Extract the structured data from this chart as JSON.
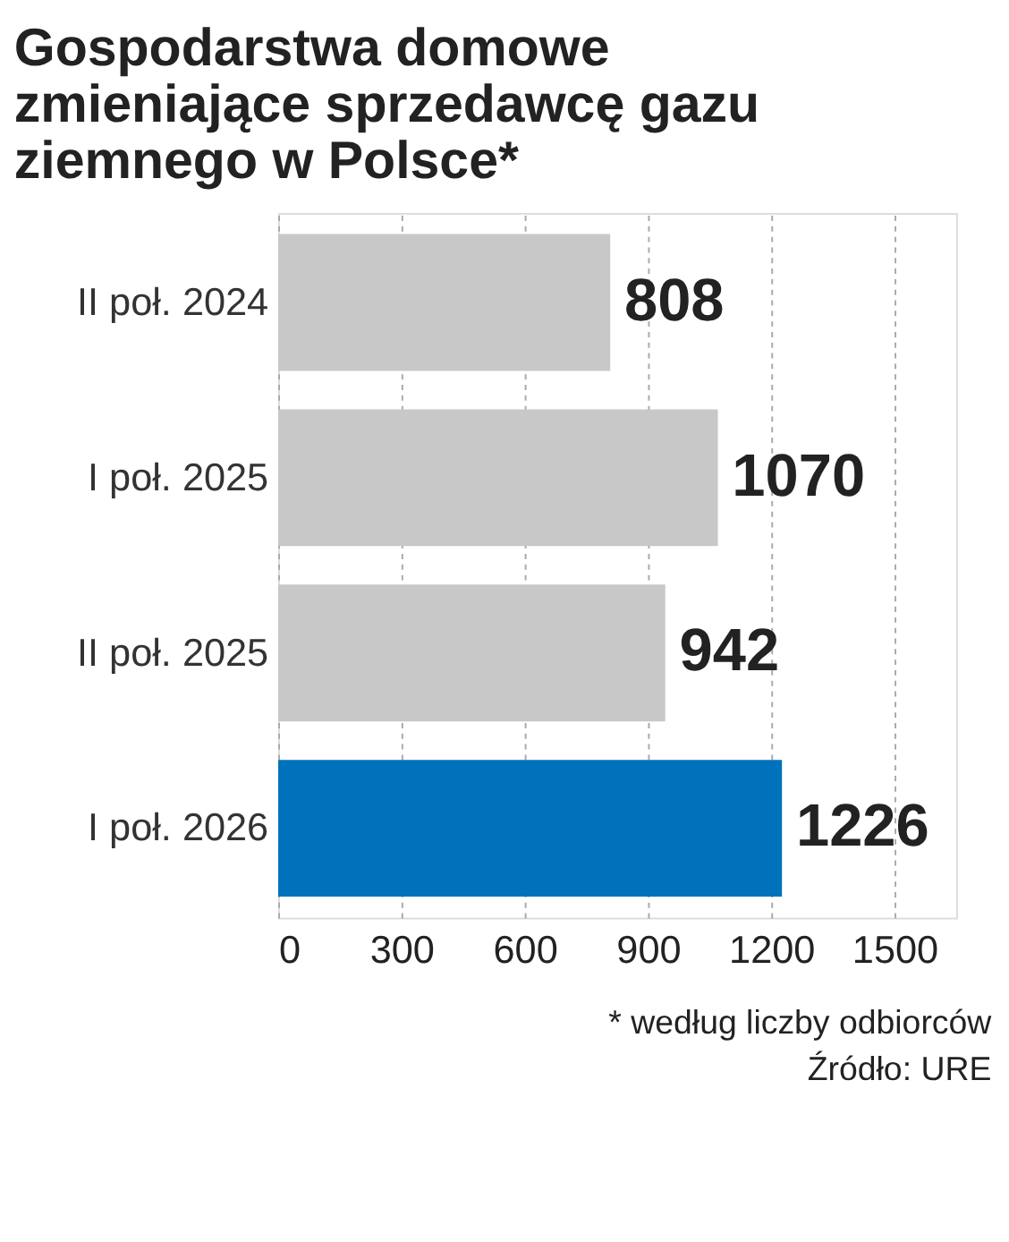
{
  "chart_data": {
    "type": "bar",
    "orientation": "horizontal",
    "title": [
      "Gospodarstwa domowe",
      "zmieniające sprzedawcę gazu",
      "ziemnego w Polsce*"
    ],
    "categories": [
      "II poł. 2024",
      "I poł. 2025",
      "II poł. 2025",
      "I poł. 2026"
    ],
    "values": [
      808,
      1070,
      942,
      1226
    ],
    "colors": [
      "#c8c8c8",
      "#c8c8c8",
      "#c8c8c8",
      "#0072bc"
    ],
    "xlim": [
      0,
      1650
    ],
    "xticks": [
      0,
      300,
      600,
      900,
      1200,
      1500
    ],
    "grid": "x",
    "data_labels": true,
    "annotations": [
      "* według liczby odbiorców",
      "Źródło: URE"
    ]
  }
}
